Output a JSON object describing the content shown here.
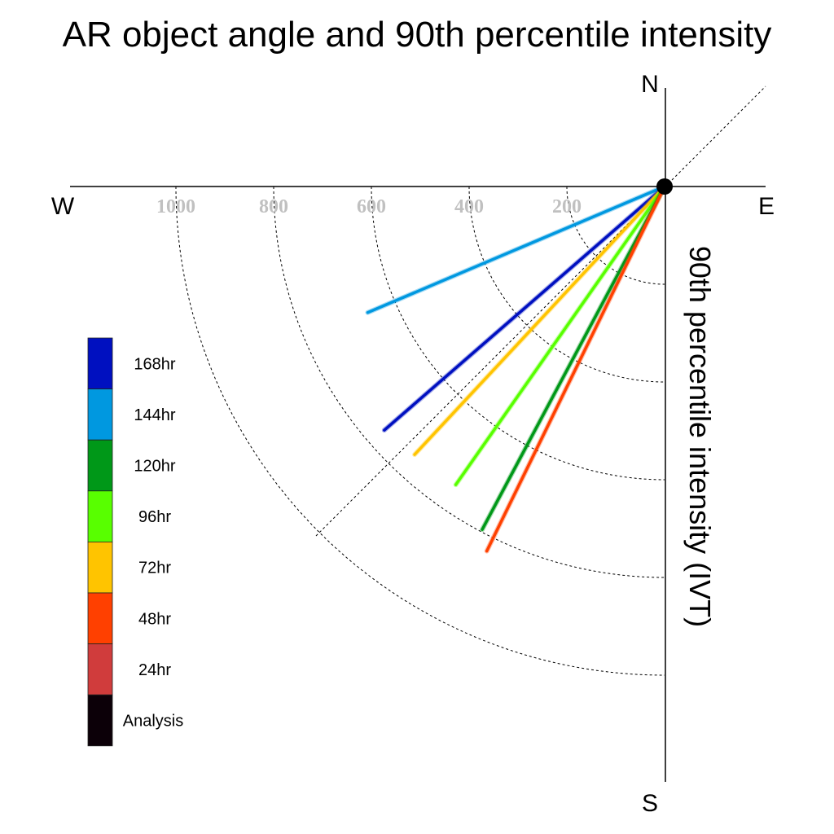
{
  "chart_data": {
    "type": "polar-vector",
    "title": "AR object angle and 90th percentile intensity",
    "ylabel": "90th percentile intensity (IVT)",
    "compass": {
      "north": "N",
      "east": "E",
      "south": "S",
      "west": "W"
    },
    "radial_ticks": [
      "200",
      "400",
      "600",
      "800",
      "1000"
    ],
    "radial_tick_values": [
      200,
      400,
      600,
      800,
      1000
    ],
    "radial_range": [
      0,
      1000
    ],
    "angle_reference_deg": 45,
    "grid": true,
    "legend_position": "left",
    "legend": [
      {
        "label": "168hr",
        "color": "#0010c0"
      },
      {
        "label": "144hr",
        "color": "#0098e0"
      },
      {
        "label": "120hr",
        "color": "#009818"
      },
      {
        "label": "96hr",
        "color": "#58ff00"
      },
      {
        "label": "72hr",
        "color": "#ffc400"
      },
      {
        "label": "48hr",
        "color": "#ff4000"
      },
      {
        "label": "24hr",
        "color": "#d03c3c"
      },
      {
        "label": "Analysis",
        "color": "#0c0008"
      }
    ],
    "series": [
      {
        "name": "144hr",
        "color": "#0098e0",
        "angle_deg": 23,
        "value": 660
      },
      {
        "name": "168hr",
        "color": "#0010c0",
        "angle_deg": 41,
        "value": 760
      },
      {
        "name": "72hr",
        "color": "#ffc400",
        "angle_deg": 47,
        "value": 750
      },
      {
        "name": "96hr",
        "color": "#58ff00",
        "angle_deg": 55,
        "value": 745
      },
      {
        "name": "120hr",
        "color": "#009818",
        "angle_deg": 62,
        "value": 795
      },
      {
        "name": "48hr",
        "color": "#ff4000",
        "angle_deg": 64,
        "value": 830
      }
    ]
  }
}
